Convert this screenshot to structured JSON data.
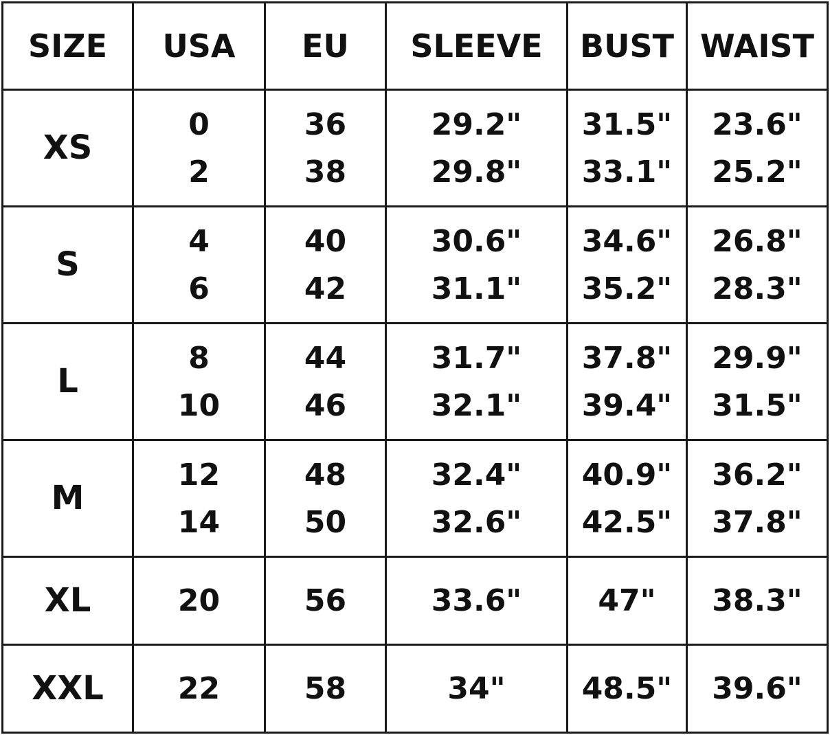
{
  "table": {
    "headers": [
      "SIZE",
      "USA",
      "EU",
      "SLEEVE",
      "BUST",
      "WAIST"
    ],
    "rows": [
      {
        "size": "XS",
        "usa": [
          "0",
          "2"
        ],
        "eu": [
          "36",
          "38"
        ],
        "sleeve": [
          "29.2\"",
          "29.8\""
        ],
        "bust": [
          "31.5\"",
          "33.1\""
        ],
        "waist": [
          "23.6\"",
          "25.2\""
        ]
      },
      {
        "size": "S",
        "usa": [
          "4",
          "6"
        ],
        "eu": [
          "40",
          "42"
        ],
        "sleeve": [
          "30.6\"",
          "31.1\""
        ],
        "bust": [
          "34.6\"",
          "35.2\""
        ],
        "waist": [
          "26.8\"",
          "28.3\""
        ]
      },
      {
        "size": "L",
        "usa": [
          "8",
          "10"
        ],
        "eu": [
          "44",
          "46"
        ],
        "sleeve": [
          "31.7\"",
          "32.1\""
        ],
        "bust": [
          "37.8\"",
          "39.4\""
        ],
        "waist": [
          "29.9\"",
          "31.5\""
        ]
      },
      {
        "size": "M",
        "usa": [
          "12",
          "14"
        ],
        "eu": [
          "48",
          "50"
        ],
        "sleeve": [
          "32.4\"",
          "32.6\""
        ],
        "bust": [
          "40.9\"",
          "42.5\""
        ],
        "waist": [
          "36.2\"",
          "37.8\""
        ]
      },
      {
        "size": "XL",
        "usa": [
          "20"
        ],
        "eu": [
          "56"
        ],
        "sleeve": [
          "33.6\""
        ],
        "bust": [
          "47\""
        ],
        "waist": [
          "38.3\""
        ]
      },
      {
        "size": "XXL",
        "usa": [
          "22"
        ],
        "eu": [
          "58"
        ],
        "sleeve": [
          "34\""
        ],
        "bust": [
          "48.5\""
        ],
        "waist": [
          "39.6\""
        ]
      }
    ]
  }
}
